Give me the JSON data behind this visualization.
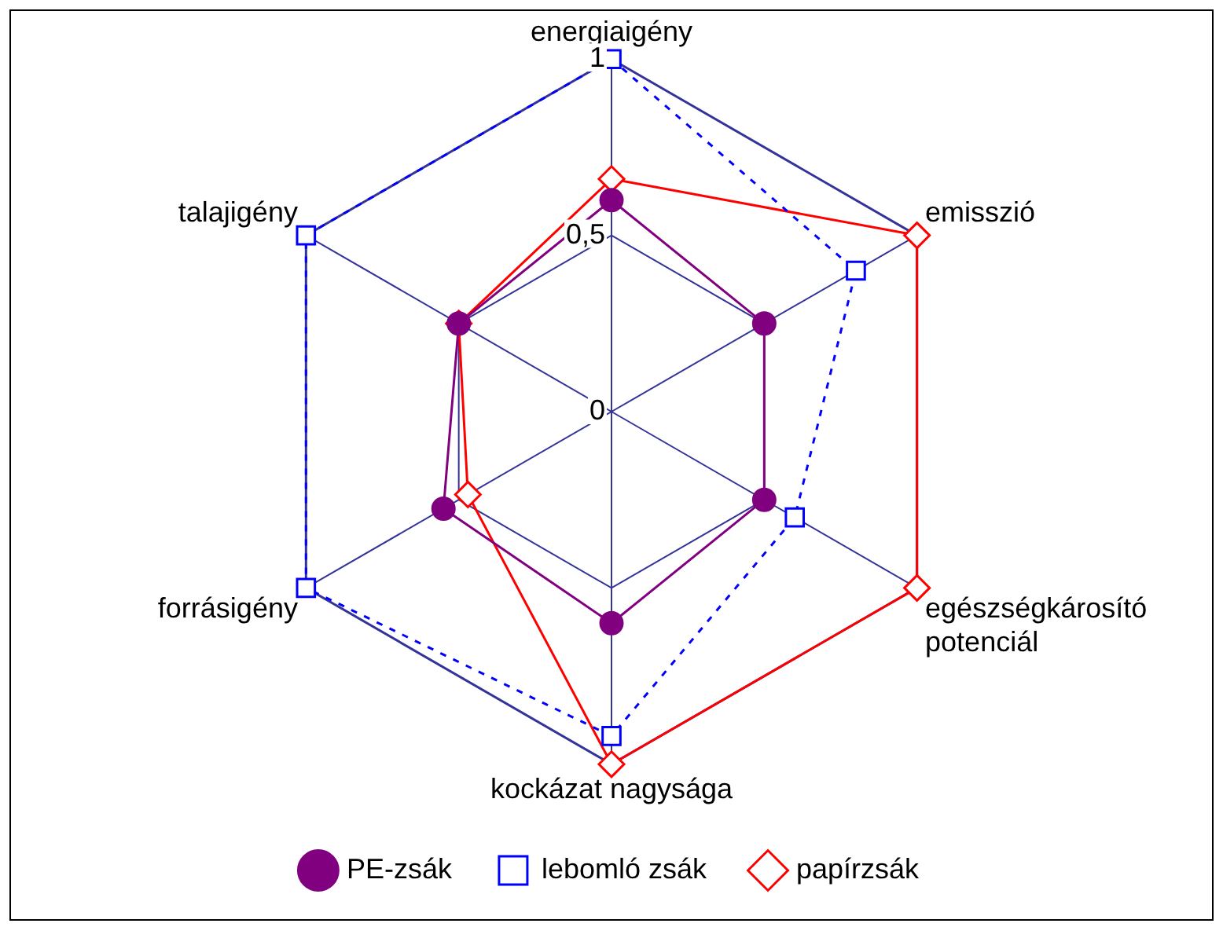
{
  "chart_data": {
    "type": "radar",
    "categories": [
      "energiaigény",
      "emisszió",
      "egészségkárosító\npotenciál",
      "kockázat nagysága",
      "forrásigény",
      "talajigény"
    ],
    "series": [
      {
        "name": "PE-zsák",
        "color": "#800080",
        "marker": "circle",
        "line_style": "solid",
        "values": [
          0.6,
          0.5,
          0.5,
          0.6,
          0.55,
          0.5
        ]
      },
      {
        "name": "lebomló zsák",
        "color": "#0000ff",
        "marker": "square",
        "line_style": "dashed",
        "values": [
          1,
          0.8,
          0.6,
          0.92,
          1,
          1
        ]
      },
      {
        "name": "papírzsák",
        "color": "#ff0000",
        "marker": "diamond",
        "line_style": "solid",
        "values": [
          0.66,
          1,
          1,
          1,
          0.47,
          0.5
        ]
      }
    ],
    "ylim": [
      0,
      1
    ],
    "yticks": [
      0,
      {
        "value": 0.5,
        "label": "0,5"
      },
      1
    ],
    "grid": true,
    "legend": "bottom"
  }
}
